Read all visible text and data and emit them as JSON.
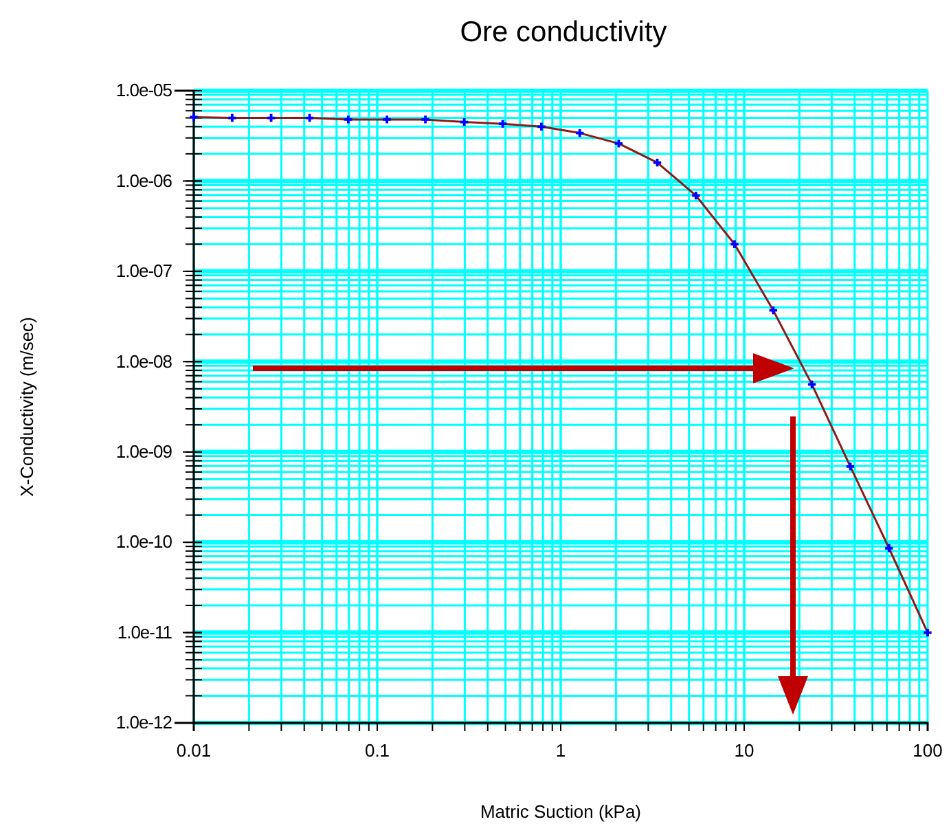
{
  "chart_data": {
    "type": "line",
    "title": "Ore conductivity",
    "xlabel": "Matric Suction (kPa)",
    "ylabel": "X-Conductivity (m/sec)",
    "log": "xy",
    "grid": true,
    "xlim": [
      0.01,
      100
    ],
    "xticks": [
      0.01,
      0.1,
      1,
      10,
      100
    ],
    "ylim": [
      1e-12,
      1e-05
    ],
    "yticks": [
      {
        "value": 1e-12,
        "label": "1.0e-12"
      },
      {
        "value": 1e-11,
        "label": "1.0e-11"
      },
      {
        "value": 1e-10,
        "label": "1.0e-10"
      },
      {
        "value": 1e-09,
        "label": "1.0e-09"
      },
      {
        "value": 1e-08,
        "label": "1.0e-08"
      },
      {
        "value": 1e-07,
        "label": "1.0e-07"
      },
      {
        "value": 1e-06,
        "label": "1.0e-06"
      },
      {
        "value": 1e-05,
        "label": "1.0e-05"
      }
    ],
    "x": [
      0.01,
      0.0162,
      0.0264,
      0.0428,
      0.0695,
      0.113,
      0.183,
      0.298,
      0.483,
      0.785,
      1.27,
      2.07,
      3.36,
      5.46,
      8.86,
      14.4,
      23.4,
      37.9,
      61.6,
      100
    ],
    "series": [
      {
        "color": "#8b1a1a",
        "marker": "none",
        "values": [
          5.1e-06,
          5e-06,
          5e-06,
          5e-06,
          4.8e-06,
          4.8e-06,
          4.8e-06,
          4.5e-06,
          4.3e-06,
          4e-06,
          3.4e-06,
          2.6e-06,
          1.6e-06,
          6.9e-07,
          2e-07,
          3.7e-08,
          5.6e-09,
          6.9e-10,
          8.6e-11,
          1e-11
        ]
      },
      {
        "type": "scatter",
        "color": "#0000ff",
        "marker": "cross",
        "values": [
          5.1e-06,
          5e-06,
          5e-06,
          5e-06,
          4.8e-06,
          4.8e-06,
          4.8e-06,
          4.5e-06,
          4.3e-06,
          4e-06,
          3.4e-06,
          2.6e-06,
          1.6e-06,
          6.9e-07,
          2e-07,
          3.7e-08,
          5.6e-09,
          6.9e-10,
          8.6e-11,
          1e-11
        ]
      }
    ]
  }
}
